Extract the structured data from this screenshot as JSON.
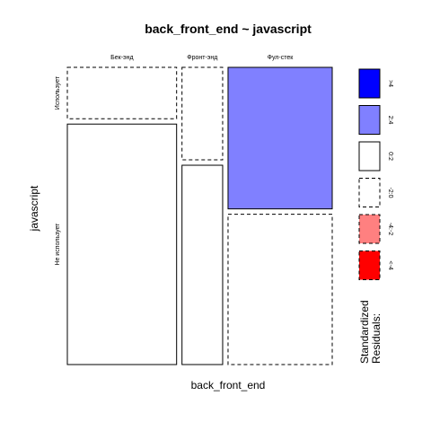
{
  "chart_data": {
    "type": "mosaic",
    "title": "back_front_end ~ javascript",
    "xlabel": "back_front_end",
    "ylabel": "javascript",
    "x_categories": [
      "Бек-энд",
      "Фронт-энд",
      "Фул-стек"
    ],
    "y_categories": [
      "Использует",
      "Не использует"
    ],
    "x_proportions": [
      0.43,
      0.16,
      0.41
    ],
    "y_proportions": [
      [
        0.176,
        0.824
      ],
      [
        0.317,
        0.683
      ],
      [
        0.485,
        0.515
      ]
    ],
    "residual_classes": [
      [
        "neutral-neg",
        "neutral-pos"
      ],
      [
        "neutral-neg",
        "neutral-pos"
      ],
      [
        "pos-2-4",
        "neutral-neg"
      ]
    ],
    "legend": {
      "title": "Standardized\nResiduals:",
      "title_lines": [
        "Standardized",
        "Residuals:"
      ],
      "items": [
        {
          "label": ">4",
          "color": "#0000ff",
          "border": "solid"
        },
        {
          "label": "2:4",
          "color": "#8080ff",
          "border": "solid"
        },
        {
          "label": "0:2",
          "color": "#ffffff",
          "border": "solid"
        },
        {
          "label": "-2:0",
          "color": "#ffffff",
          "border": "dashed"
        },
        {
          "label": "-4:-2",
          "color": "#ff8080",
          "border": "dashed"
        },
        {
          "label": "<-4",
          "color": "#ff0000",
          "border": "dashed"
        }
      ]
    }
  }
}
